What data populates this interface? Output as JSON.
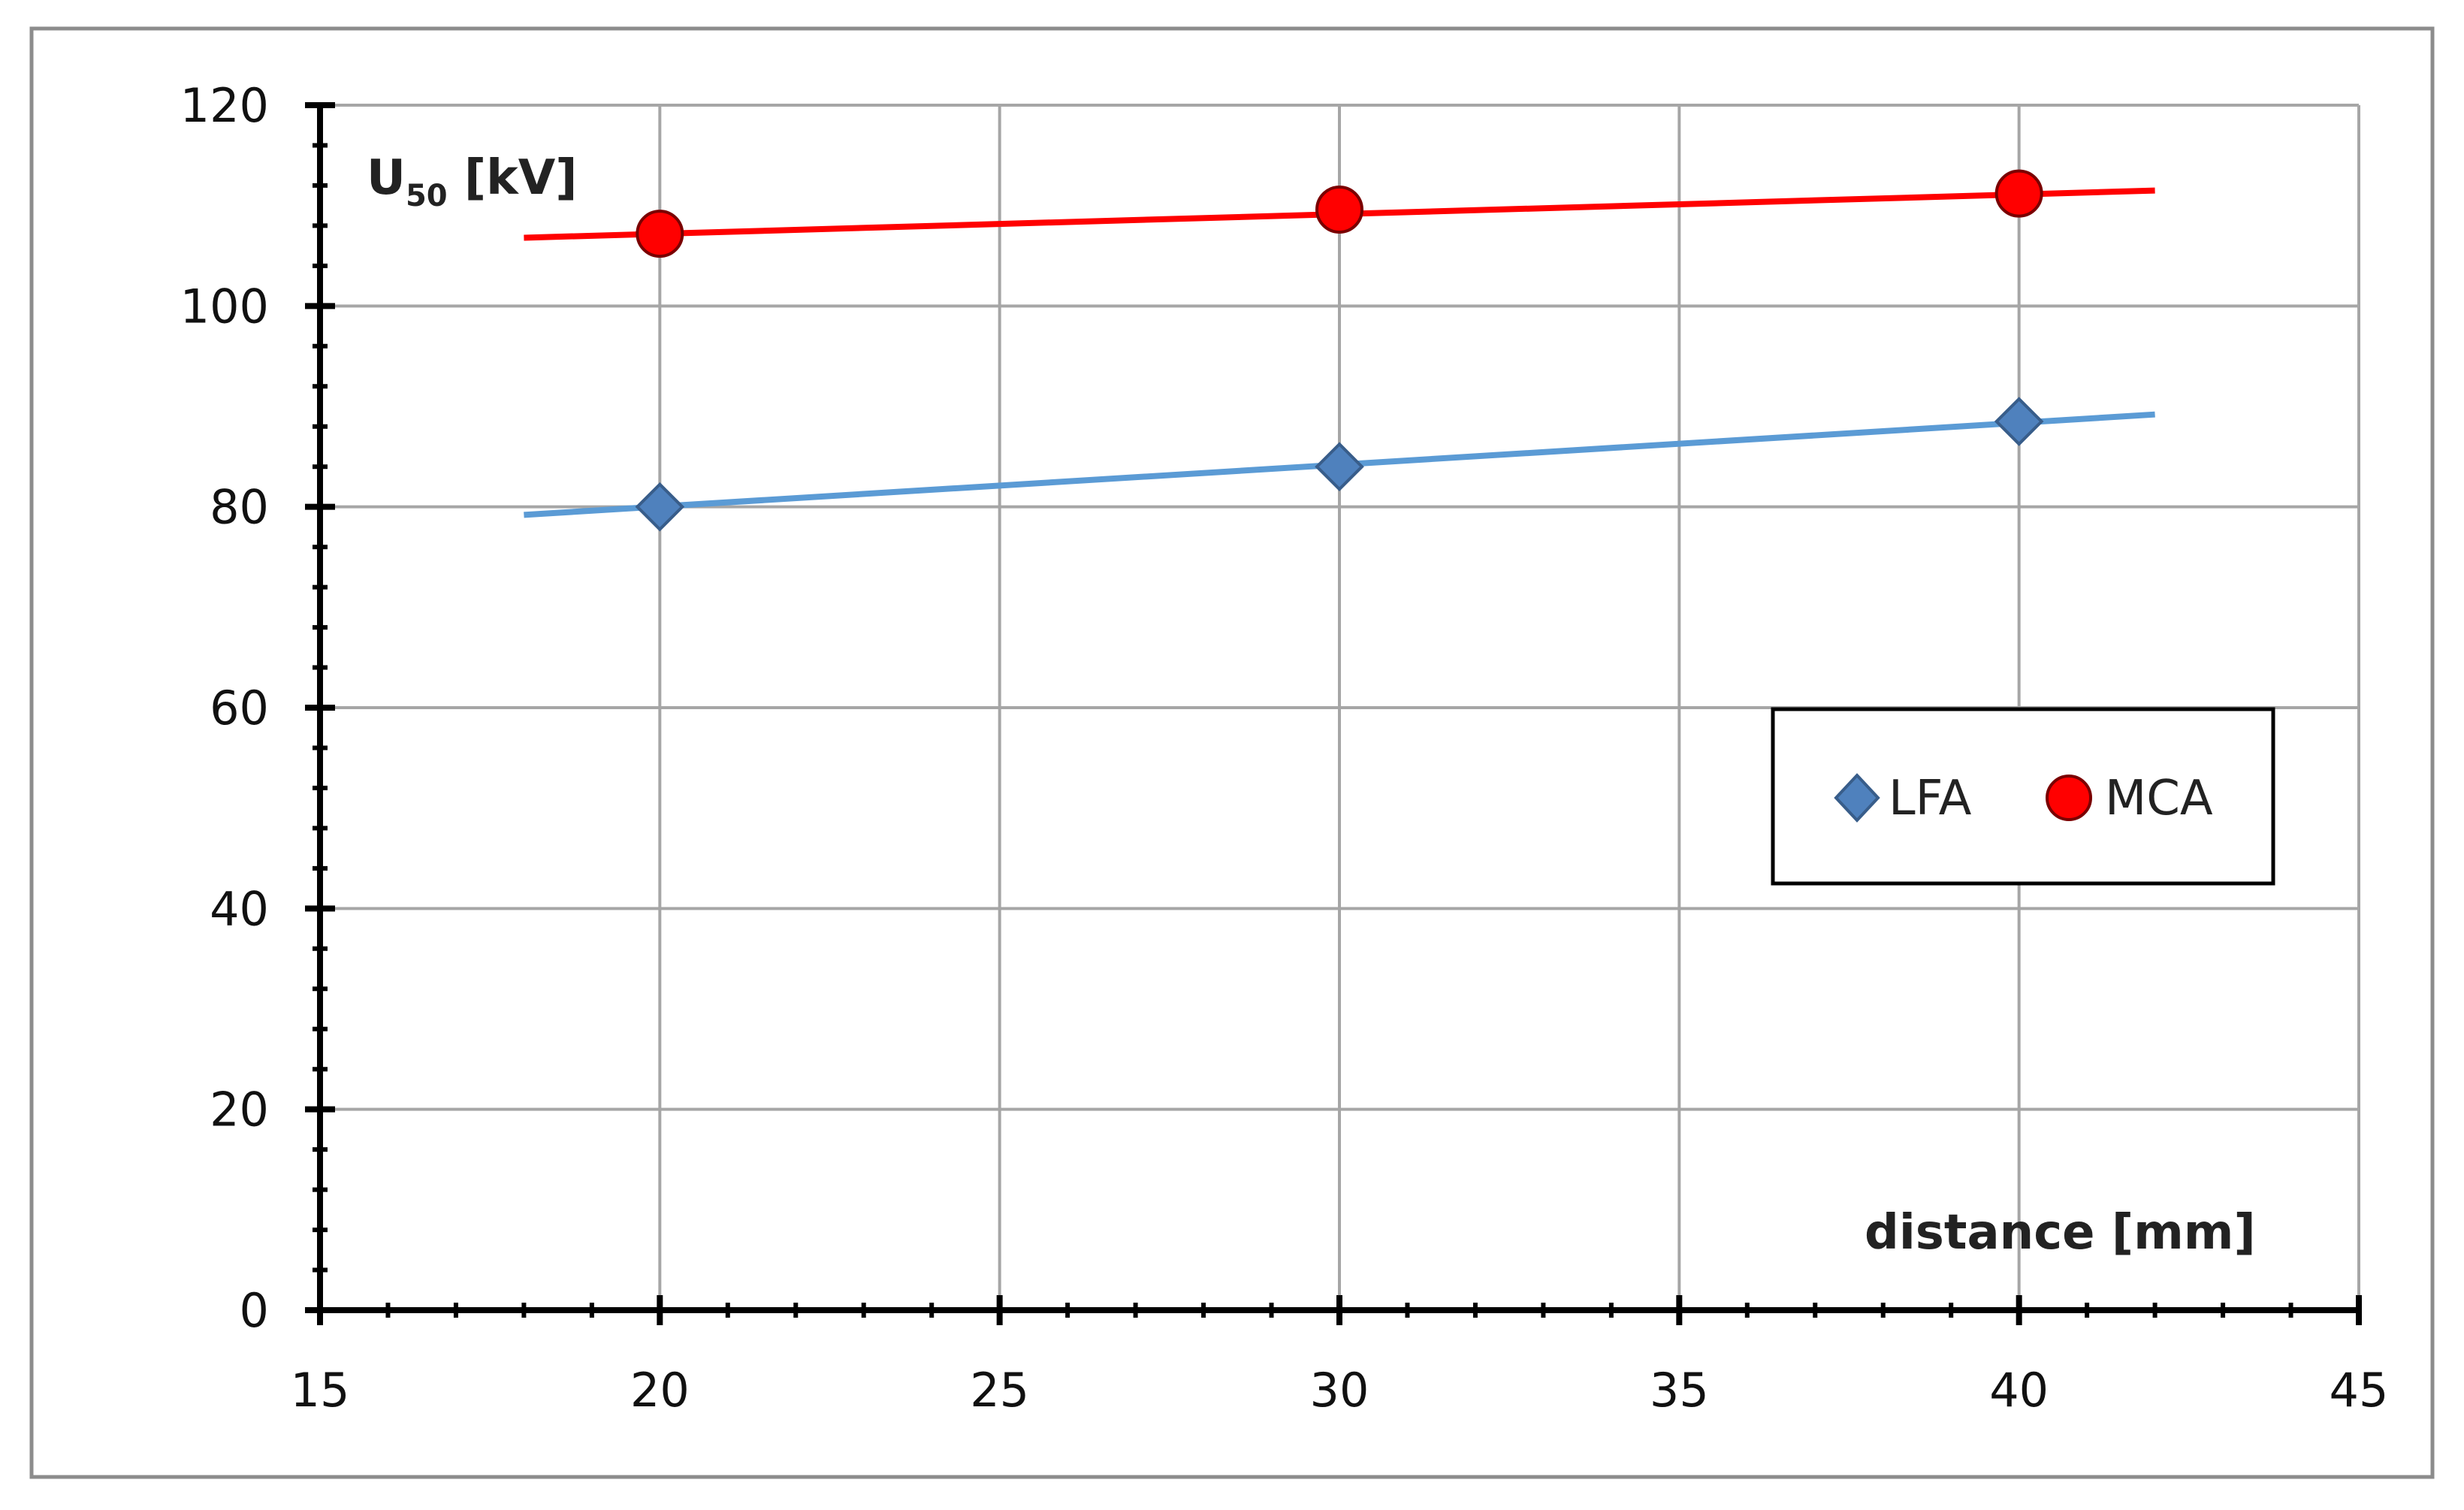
{
  "chart_data": {
    "type": "scatter",
    "title": "",
    "xlabel": "distance [mm]",
    "ylabel": {
      "base": "U",
      "subscript": "50",
      "unit": " [kV]"
    },
    "xlim": [
      15,
      45
    ],
    "ylim": [
      0,
      120
    ],
    "xticks": [
      15,
      20,
      25,
      30,
      35,
      40,
      45
    ],
    "yticks": [
      0,
      20,
      40,
      60,
      80,
      100,
      120
    ],
    "x_minor_step": 1,
    "y_minor_step": 4,
    "grid": true,
    "legend_position": "center-right",
    "series": [
      {
        "name": "LFA",
        "marker": "diamond",
        "color": "#4f81bd",
        "line_color": "#5b9bd5",
        "x": [
          20,
          30,
          40
        ],
        "y": [
          80,
          84,
          88.5
        ],
        "trendline": {
          "x": [
            18,
            42
          ],
          "y": [
            79.2,
            89.2
          ]
        }
      },
      {
        "name": "MCA",
        "marker": "circle",
        "color": "#ff0000",
        "line_color": "#ff0000",
        "x": [
          20,
          30,
          40
        ],
        "y": [
          107.2,
          109.6,
          111.2
        ],
        "trendline": {
          "x": [
            18,
            42
          ],
          "y": [
            106.8,
            111.5
          ]
        }
      }
    ]
  }
}
